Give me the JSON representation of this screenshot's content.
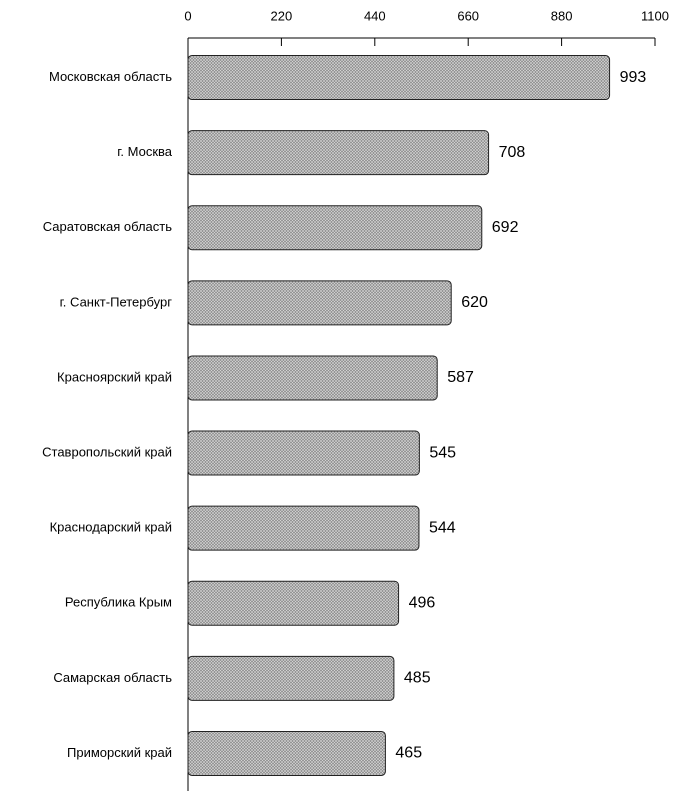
{
  "chart_data": {
    "type": "bar",
    "orientation": "horizontal",
    "categories": [
      "Московская область",
      "г. Москва",
      "Саратовская область",
      "г. Санкт-Петербург",
      "Красноярский край",
      "Ставропольский край",
      "Краснодарский край",
      "Республика Крым",
      "Самарская область",
      "Приморский край"
    ],
    "values": [
      993,
      708,
      692,
      620,
      587,
      545,
      544,
      496,
      485,
      465
    ],
    "color": "#8a8a8a",
    "xlim": [
      0,
      1100
    ],
    "xticks": [
      0,
      220,
      440,
      660,
      880,
      1100
    ],
    "grid": false
  }
}
